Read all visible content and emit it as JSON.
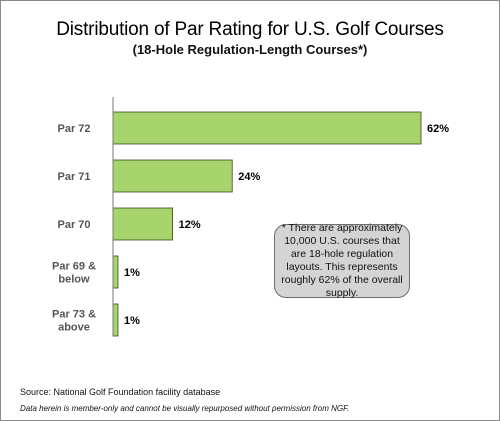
{
  "chart_data": {
    "type": "bar",
    "orientation": "horizontal",
    "title": "Distribution of Par Rating for U.S. Golf Courses",
    "subtitle": "(18-Hole Regulation-Length Courses*)",
    "categories": [
      [
        "Par 72"
      ],
      [
        "Par 71"
      ],
      [
        "Par 70"
      ],
      [
        "Par 69 &",
        "below"
      ],
      [
        "Par 73 &",
        "above"
      ]
    ],
    "values": [
      62,
      24,
      12,
      1,
      1
    ],
    "data_labels": [
      "62%",
      "24%",
      "12%",
      "1%",
      "1%"
    ],
    "xlim": [
      0,
      62
    ],
    "bar_color": "#a6d36b",
    "bar_edge_color": "#3d4a1e",
    "grid": false,
    "legend": "none"
  },
  "note": "* There are approximately 10,000 U.S. courses that are 18-hole regulation layouts. This represents roughly 62% of the overall supply.",
  "source": "Source: National Golf Foundation facility database",
  "disclaimer": "Data herein is member-only and cannot be visually repurposed without permission from NGF."
}
